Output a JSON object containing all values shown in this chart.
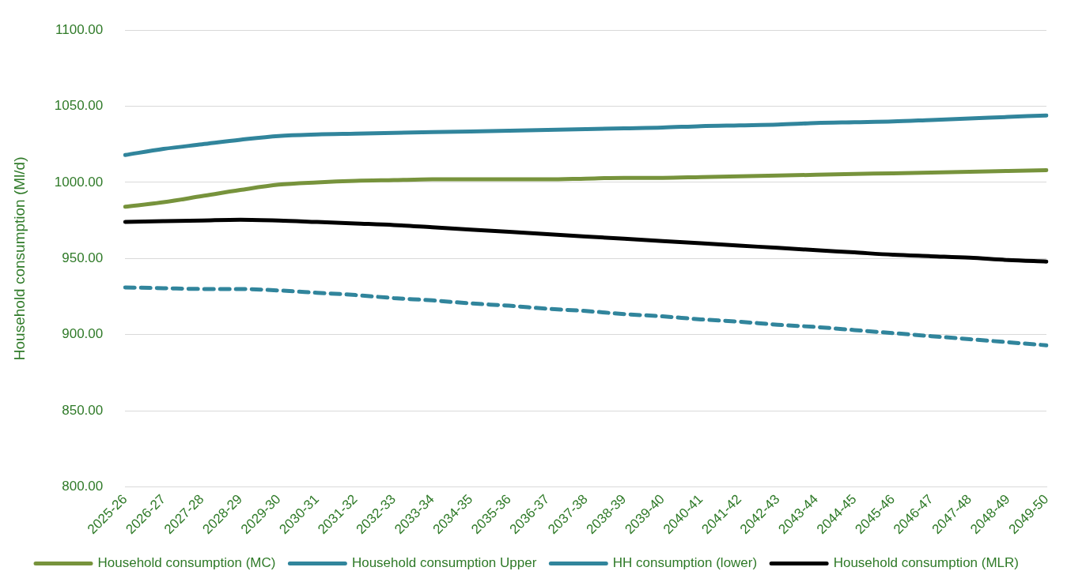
{
  "chart_data": {
    "type": "line",
    "ylabel": "Household consumption (Ml/d)",
    "categories": [
      "2025-26",
      "2026-27",
      "2027-28",
      "2028-29",
      "2029-30",
      "2030-31",
      "2031-32",
      "2032-33",
      "2033-34",
      "2034-35",
      "2035-36",
      "2036-37",
      "2037-38",
      "2038-39",
      "2039-40",
      "2040-41",
      "2041-42",
      "2042-43",
      "2043-44",
      "2044-45",
      "2045-46",
      "2046-47",
      "2047-48",
      "2048-49",
      "2049-50"
    ],
    "series": [
      {
        "name": "Household consumption (MC)",
        "color": "#77933c",
        "line_style": "solid",
        "values": [
          984,
          987,
          991,
          995,
          998.5,
          1000,
          1001,
          1001.5,
          1002,
          1002,
          1002,
          1002,
          1002.5,
          1003,
          1003,
          1003.5,
          1004,
          1004.5,
          1005,
          1005.5,
          1006,
          1006.5,
          1007,
          1007.5,
          1008
        ]
      },
      {
        "name": "Household consumption Upper",
        "color": "#31859c",
        "line_style": "solid",
        "values": [
          1018,
          1022,
          1025,
          1028,
          1030.5,
          1031.5,
          1032,
          1032.5,
          1033,
          1033.5,
          1034,
          1034.5,
          1035,
          1035.5,
          1036,
          1037,
          1037.5,
          1038,
          1039,
          1039.5,
          1040,
          1041,
          1042,
          1043,
          1044
        ]
      },
      {
        "name": "HH consumption (lower)",
        "color": "#31859c",
        "line_style": "dashed",
        "values": [
          931,
          930.5,
          930,
          930,
          929,
          927.5,
          926,
          924,
          922.5,
          920.5,
          919,
          917,
          915.5,
          913.5,
          912,
          910,
          908.5,
          906.5,
          905,
          903,
          901,
          899,
          897,
          895,
          893
        ]
      },
      {
        "name": "Household consumption (MLR)",
        "color": "#000000",
        "line_style": "solid",
        "values": [
          974,
          974.5,
          975,
          975.5,
          975,
          974,
          973,
          972,
          970.5,
          969,
          967.5,
          966,
          964.5,
          963,
          961.5,
          960,
          958.5,
          957,
          955.5,
          954,
          952.5,
          951.5,
          950.5,
          949,
          948
        ]
      }
    ],
    "ylim": [
      800,
      1100
    ],
    "yticks": [
      {
        "value": 800,
        "label": "800.00"
      },
      {
        "value": 850,
        "label": "850.00"
      },
      {
        "value": 900,
        "label": "900.00"
      },
      {
        "value": 950,
        "label": "950.00"
      },
      {
        "value": 1000,
        "label": "1000.00"
      },
      {
        "value": 1050,
        "label": "1050.00"
      },
      {
        "value": 1100,
        "label": "1100.00"
      }
    ],
    "grid": "y",
    "legend": "bottom",
    "marker": "none"
  }
}
